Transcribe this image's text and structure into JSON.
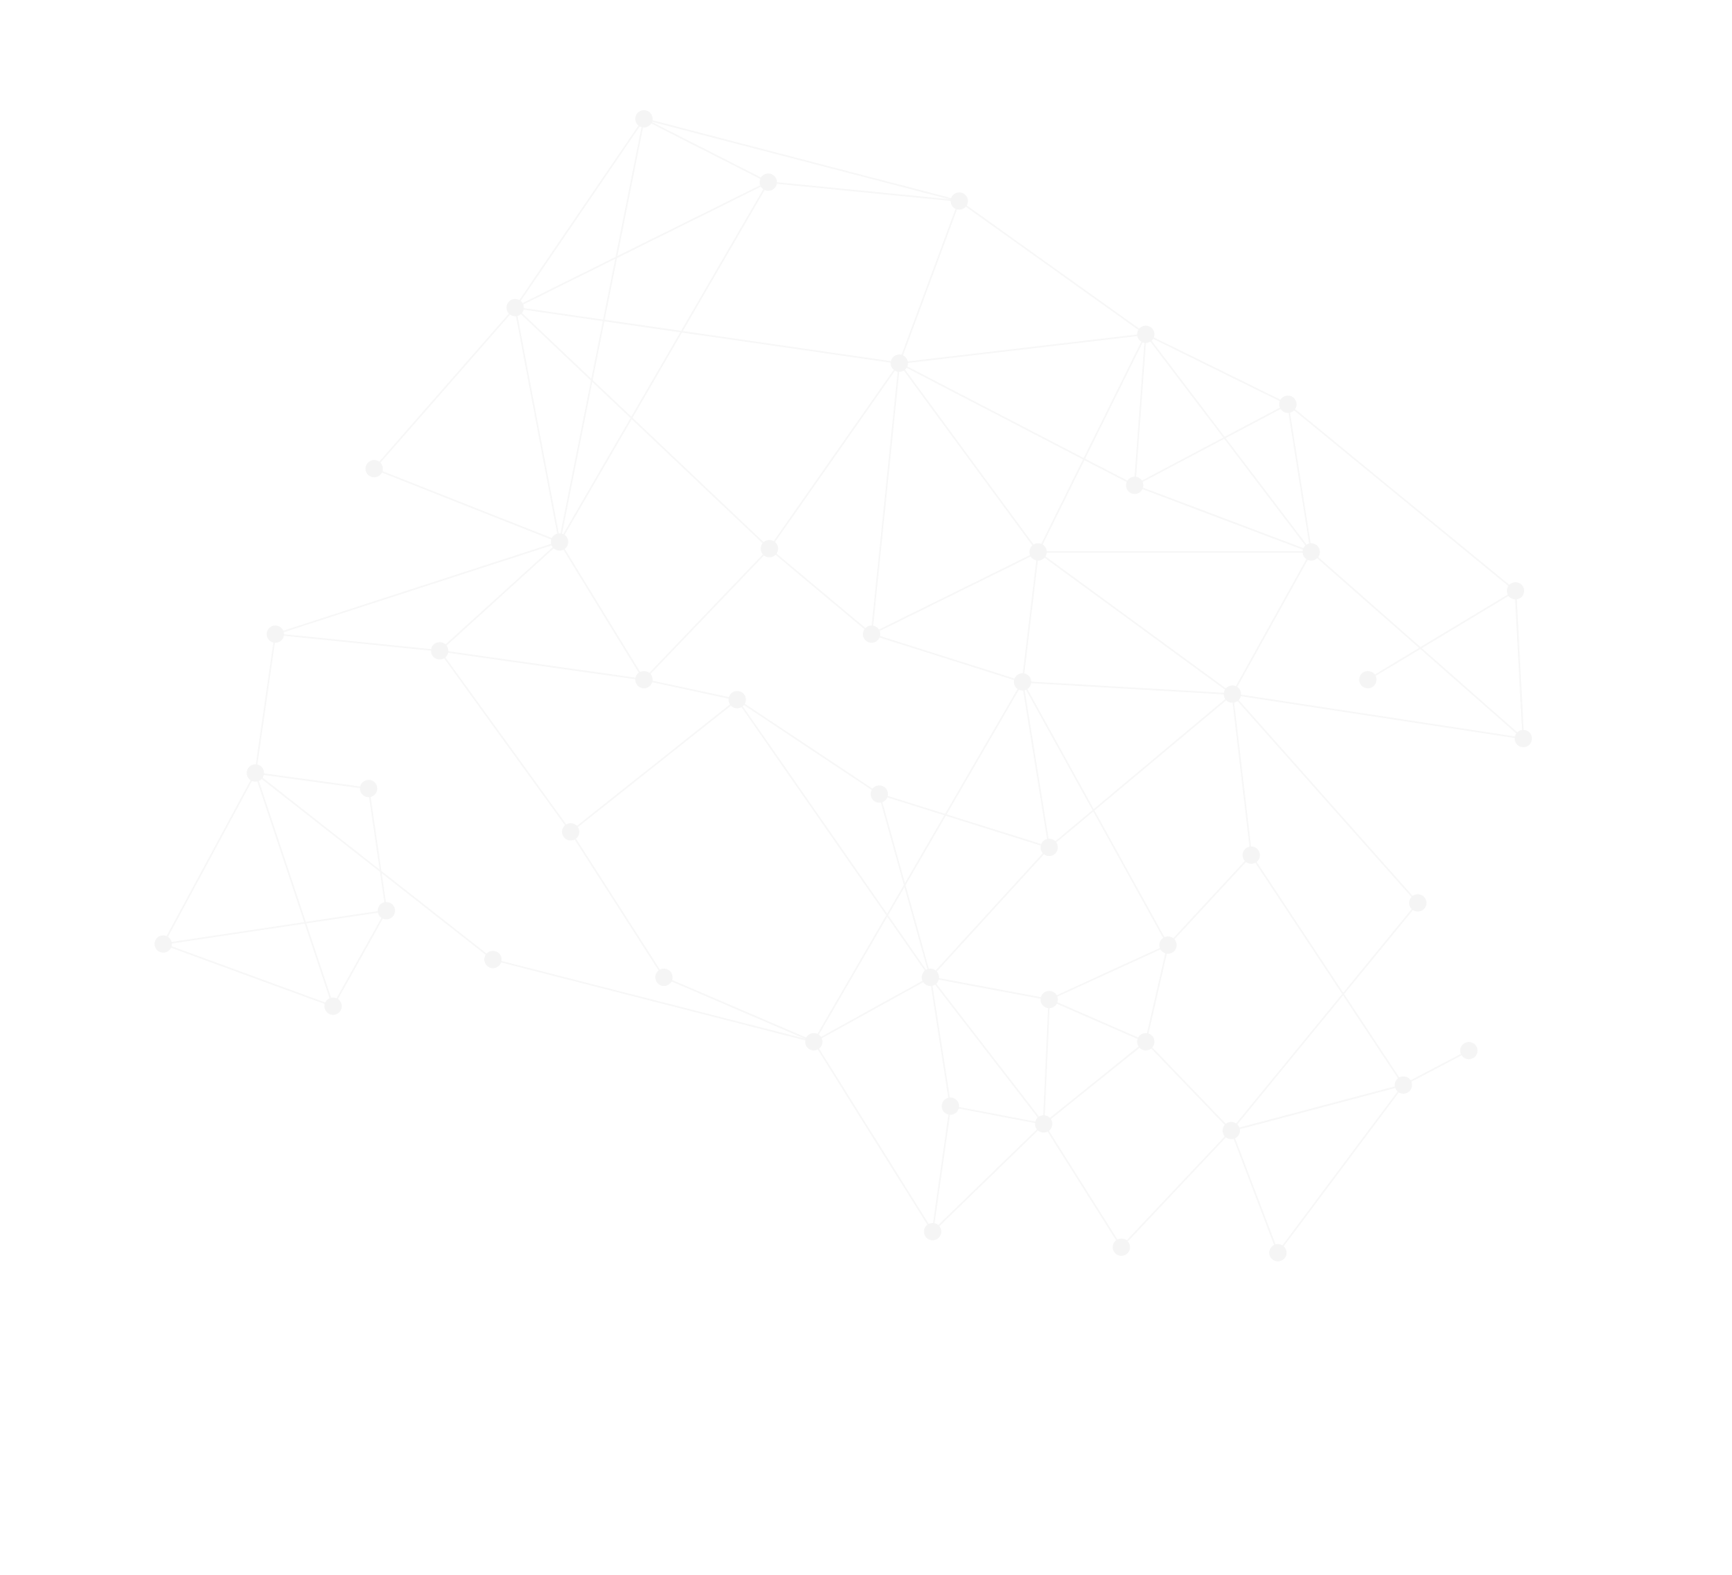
{
  "colors": {
    "background": "#ffffff",
    "edge": "#f7f7f7",
    "node": "#f5f5f5"
  }
}
